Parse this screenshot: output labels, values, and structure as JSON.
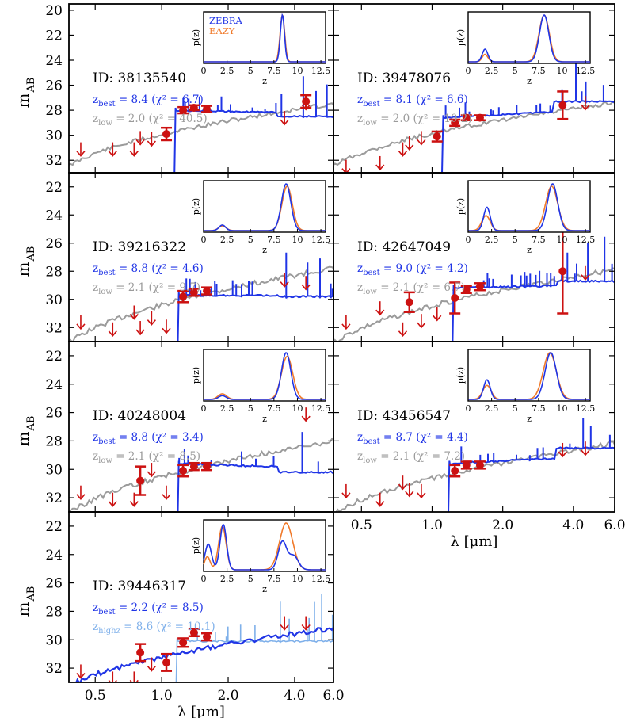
{
  "axes": {
    "ylabel_main": "m",
    "ylabel_sub": "AB",
    "xlabel": "λ [μm]",
    "x_ticks": [
      {
        "v": 0.5,
        "label": "0.5"
      },
      {
        "v": 1.0,
        "label": "1.0"
      },
      {
        "v": 2.0,
        "label": "2.0"
      },
      {
        "v": 4.0,
        "label": "4.0"
      },
      {
        "v": 6.0,
        "label": "6.0"
      }
    ],
    "xlim": [
      0.38,
      6.0
    ],
    "ylim_top_panels": [
      19.5,
      33.0
    ],
    "ylim_other_panels": [
      21.0,
      33.0
    ],
    "inset_x_ticks": [
      "0",
      "2.5",
      "5",
      "7.5",
      "10",
      "12.5"
    ],
    "inset_xlabel": "z",
    "inset_ylabel": "p(z)"
  },
  "legend": {
    "zebra": {
      "label": "ZEBRA",
      "color": "#2035e6"
    },
    "eazy": {
      "label": "EAZY",
      "color": "#f07a2b"
    }
  },
  "colors": {
    "best": "#2035e6",
    "low": "#9b9b9b",
    "highz": "#7fb0ea",
    "photometry": "#cc1111",
    "eazy": "#f07a2b"
  },
  "chart_data": [
    {
      "type": "line",
      "id_label": "ID: 38135540",
      "zbest_label": "8.4 (χ² = 6.7)",
      "zalt_sub": "low",
      "zalt_label": "2.0 (χ² = 40.5)",
      "z_best": 8.4,
      "z_low": 2.0,
      "break_um": 1.14,
      "best_level": 28.0,
      "best_red_level": 28.5,
      "low_range": [
        33.3,
        27.4
      ],
      "pz_peaks_zebra": [
        {
          "z": 8.4,
          "amp": 1.0,
          "sig": 0.22
        }
      ],
      "pz_peaks_eazy": [
        {
          "z": 8.4,
          "amp": 1.0,
          "sig": 0.25
        }
      ],
      "detections": [
        {
          "l": 1.05,
          "m": 29.9,
          "e": 0.5
        },
        {
          "l": 1.25,
          "m": 28.0,
          "e": 0.25
        },
        {
          "l": 1.4,
          "m": 27.8,
          "e": 0.2
        },
        {
          "l": 1.6,
          "m": 27.9,
          "e": 0.25
        },
        {
          "l": 4.5,
          "m": 27.3,
          "e": 0.5
        }
      ],
      "upper_limits": [
        {
          "l": 0.43,
          "m": 31.2
        },
        {
          "l": 0.6,
          "m": 31.2
        },
        {
          "l": 0.75,
          "m": 31.2
        },
        {
          "l": 0.8,
          "m": 30.3
        },
        {
          "l": 0.9,
          "m": 30.4
        },
        {
          "l": 3.6,
          "m": 28.7
        },
        {
          "l": 4.5,
          "m": 27.5
        }
      ]
    },
    {
      "type": "line",
      "id_label": "ID: 39478076",
      "zbest_label": "8.1 (χ² = 6.6)",
      "zalt_sub": "low",
      "zalt_label": "2.0 (χ² = 10.2)",
      "z_best": 8.1,
      "z_low": 2.0,
      "break_um": 1.1,
      "best_level": 28.6,
      "best_red_level": 27.3,
      "low_range": [
        33.3,
        27.3
      ],
      "pz_peaks_zebra": [
        {
          "z": 1.8,
          "amp": 0.27,
          "sig": 0.3
        },
        {
          "z": 8.1,
          "amp": 1.0,
          "sig": 0.5
        }
      ],
      "pz_peaks_eazy": [
        {
          "z": 1.8,
          "amp": 0.16,
          "sig": 0.3
        },
        {
          "z": 8.1,
          "amp": 1.0,
          "sig": 0.55
        }
      ],
      "detections": [
        {
          "l": 1.05,
          "m": 30.1,
          "e": 0.4
        },
        {
          "l": 1.25,
          "m": 29.0,
          "e": 0.25
        },
        {
          "l": 1.4,
          "m": 28.6,
          "e": 0.2
        },
        {
          "l": 1.6,
          "m": 28.6,
          "e": 0.2
        },
        {
          "l": 3.6,
          "m": 27.6,
          "e": 1.1
        }
      ],
      "upper_limits": [
        {
          "l": 0.43,
          "m": 32.6
        },
        {
          "l": 0.6,
          "m": 32.3
        },
        {
          "l": 0.75,
          "m": 31.2
        },
        {
          "l": 0.8,
          "m": 30.7
        },
        {
          "l": 0.9,
          "m": 30.3
        },
        {
          "l": 4.5,
          "m": 27.5
        }
      ]
    },
    {
      "type": "line",
      "id_label": "ID: 39216322",
      "zbest_label": "8.8 (χ² = 4.6)",
      "zalt_sub": "low",
      "zalt_label": "2.1 (χ² = 9.7)",
      "z_best": 8.8,
      "z_low": 2.1,
      "break_um": 1.18,
      "best_level": 29.7,
      "best_red_level": 29.8,
      "low_range": [
        34.0,
        27.7
      ],
      "pz_peaks_zebra": [
        {
          "z": 2.0,
          "amp": 0.12,
          "sig": 0.35
        },
        {
          "z": 8.8,
          "amp": 1.0,
          "sig": 0.5
        }
      ],
      "pz_peaks_eazy": [
        {
          "z": 2.0,
          "amp": 0.1,
          "sig": 0.4
        },
        {
          "z": 8.9,
          "amp": 0.95,
          "sig": 0.55
        }
      ],
      "detections": [
        {
          "l": 1.25,
          "m": 29.8,
          "e": 0.4
        },
        {
          "l": 1.4,
          "m": 29.5,
          "e": 0.25
        },
        {
          "l": 1.6,
          "m": 29.4,
          "e": 0.25
        }
      ],
      "upper_limits": [
        {
          "l": 0.43,
          "m": 31.7
        },
        {
          "l": 0.6,
          "m": 32.2
        },
        {
          "l": 0.75,
          "m": 31.0
        },
        {
          "l": 0.8,
          "m": 32.1
        },
        {
          "l": 0.9,
          "m": 31.4
        },
        {
          "l": 1.05,
          "m": 32.0
        },
        {
          "l": 3.6,
          "m": 28.7
        },
        {
          "l": 4.5,
          "m": 28.9
        }
      ]
    },
    {
      "type": "line",
      "id_label": "ID: 42647049",
      "zbest_label": "9.0 (χ² = 4.2)",
      "zalt_sub": "low",
      "zalt_label": "2.1 (χ² = 6.7)",
      "z_best": 9.0,
      "z_low": 2.1,
      "break_um": 1.22,
      "best_level": 29.2,
      "best_red_level": 28.7,
      "low_range": [
        34.0,
        27.8
      ],
      "pz_peaks_zebra": [
        {
          "z": 2.0,
          "amp": 0.5,
          "sig": 0.35
        },
        {
          "z": 9.0,
          "amp": 1.0,
          "sig": 0.55
        }
      ],
      "pz_peaks_eazy": [
        {
          "z": 1.9,
          "amp": 0.32,
          "sig": 0.45
        },
        {
          "z": 8.9,
          "amp": 0.95,
          "sig": 0.65
        }
      ],
      "detections": [
        {
          "l": 0.8,
          "m": 30.2,
          "e": 0.7
        },
        {
          "l": 1.25,
          "m": 29.9,
          "e": 1.1
        },
        {
          "l": 1.4,
          "m": 29.3,
          "e": 0.25
        },
        {
          "l": 1.6,
          "m": 29.1,
          "e": 0.25
        },
        {
          "l": 3.6,
          "m": 28.0,
          "e": 3.0
        }
      ],
      "upper_limits": [
        {
          "l": 0.43,
          "m": 31.7
        },
        {
          "l": 0.6,
          "m": 30.7
        },
        {
          "l": 0.75,
          "m": 32.2
        },
        {
          "l": 0.9,
          "m": 31.6
        },
        {
          "l": 1.05,
          "m": 31.1
        },
        {
          "l": 4.5,
          "m": 28.2
        }
      ]
    },
    {
      "type": "line",
      "id_label": "ID: 40248004",
      "zbest_label": "8.8 (χ² = 3.4)",
      "zalt_sub": "low",
      "zalt_label": "2.1 (χ² = 8.5)",
      "z_best": 8.8,
      "z_low": 2.1,
      "break_um": 1.18,
      "best_level": 29.6,
      "best_red_level": 30.2,
      "low_range": [
        34.0,
        27.9
      ],
      "pz_peaks_zebra": [
        {
          "z": 2.0,
          "amp": 0.08,
          "sig": 0.4
        },
        {
          "z": 8.8,
          "amp": 1.0,
          "sig": 0.5
        }
      ],
      "pz_peaks_eazy": [
        {
          "z": 2.0,
          "amp": 0.12,
          "sig": 0.45
        },
        {
          "z": 8.9,
          "amp": 0.92,
          "sig": 0.6
        }
      ],
      "detections": [
        {
          "l": 0.8,
          "m": 30.8,
          "e": 1.0
        },
        {
          "l": 1.25,
          "m": 30.1,
          "e": 0.4
        },
        {
          "l": 1.4,
          "m": 29.8,
          "e": 0.25
        },
        {
          "l": 1.6,
          "m": 29.8,
          "e": 0.25
        }
      ],
      "upper_limits": [
        {
          "l": 0.43,
          "m": 31.7
        },
        {
          "l": 0.6,
          "m": 32.2
        },
        {
          "l": 0.75,
          "m": 32.2
        },
        {
          "l": 0.9,
          "m": 30.1
        },
        {
          "l": 1.05,
          "m": 31.7
        },
        {
          "l": 4.5,
          "m": 26.2
        }
      ]
    },
    {
      "type": "line",
      "id_label": "ID: 43456547",
      "zbest_label": "8.7 (χ² = 4.4)",
      "zalt_sub": "low",
      "zalt_label": "2.1 (χ² = 7.2)",
      "z_best": 8.7,
      "z_low": 2.1,
      "break_um": 1.17,
      "best_level": 29.6,
      "best_red_level": 28.5,
      "low_range": [
        34.0,
        28.1
      ],
      "pz_peaks_zebra": [
        {
          "z": 2.0,
          "amp": 0.42,
          "sig": 0.35
        },
        {
          "z": 8.8,
          "amp": 1.0,
          "sig": 0.6
        }
      ],
      "pz_peaks_eazy": [
        {
          "z": 2.0,
          "amp": 0.3,
          "sig": 0.45
        },
        {
          "z": 8.7,
          "amp": 1.0,
          "sig": 0.7
        }
      ],
      "detections": [
        {
          "l": 1.25,
          "m": 30.1,
          "e": 0.4
        },
        {
          "l": 1.4,
          "m": 29.7,
          "e": 0.25
        },
        {
          "l": 1.6,
          "m": 29.7,
          "e": 0.25
        }
      ],
      "upper_limits": [
        {
          "l": 0.43,
          "m": 31.6
        },
        {
          "l": 0.6,
          "m": 32.2
        },
        {
          "l": 0.75,
          "m": 31.0
        },
        {
          "l": 0.8,
          "m": 31.5
        },
        {
          "l": 0.9,
          "m": 31.6
        },
        {
          "l": 3.6,
          "m": 28.7
        },
        {
          "l": 4.5,
          "m": 28.6
        }
      ]
    },
    {
      "type": "line",
      "id_label": "ID: 39446317",
      "zbest_label": "2.2 (χ² = 8.5)",
      "zalt_sub": "highz",
      "zalt_label": "8.6 (χ² = 10.1)",
      "z_best": 2.2,
      "z_highz": 8.6,
      "break_um": 1.16,
      "best_range": [
        34.0,
        29.1
      ],
      "highz_level": 30.1,
      "pz_peaks_zebra": [
        {
          "z": 0.5,
          "amp": 0.55,
          "sig": 0.35
        },
        {
          "z": 2.1,
          "amp": 0.97,
          "sig": 0.35
        },
        {
          "z": 8.4,
          "amp": 0.6,
          "sig": 0.45
        },
        {
          "z": 9.6,
          "amp": 0.3,
          "sig": 0.5
        }
      ],
      "pz_peaks_eazy": [
        {
          "z": 0.4,
          "amp": 0.28,
          "sig": 0.3
        },
        {
          "z": 2.0,
          "amp": 0.93,
          "sig": 0.4
        },
        {
          "z": 8.8,
          "amp": 1.0,
          "sig": 0.7
        }
      ],
      "detections": [
        {
          "l": 0.8,
          "m": 30.9,
          "e": 0.6
        },
        {
          "l": 1.05,
          "m": 31.6,
          "e": 0.6
        },
        {
          "l": 1.25,
          "m": 30.2,
          "e": 0.3
        },
        {
          "l": 1.4,
          "m": 29.5,
          "e": 0.25
        },
        {
          "l": 1.6,
          "m": 29.8,
          "e": 0.25
        }
      ],
      "upper_limits": [
        {
          "l": 0.43,
          "m": 32.3
        },
        {
          "l": 0.6,
          "m": 32.8
        },
        {
          "l": 0.75,
          "m": 32.8
        },
        {
          "l": 0.9,
          "m": 31.8
        },
        {
          "l": 3.6,
          "m": 28.9
        },
        {
          "l": 4.5,
          "m": 28.9
        }
      ]
    }
  ]
}
